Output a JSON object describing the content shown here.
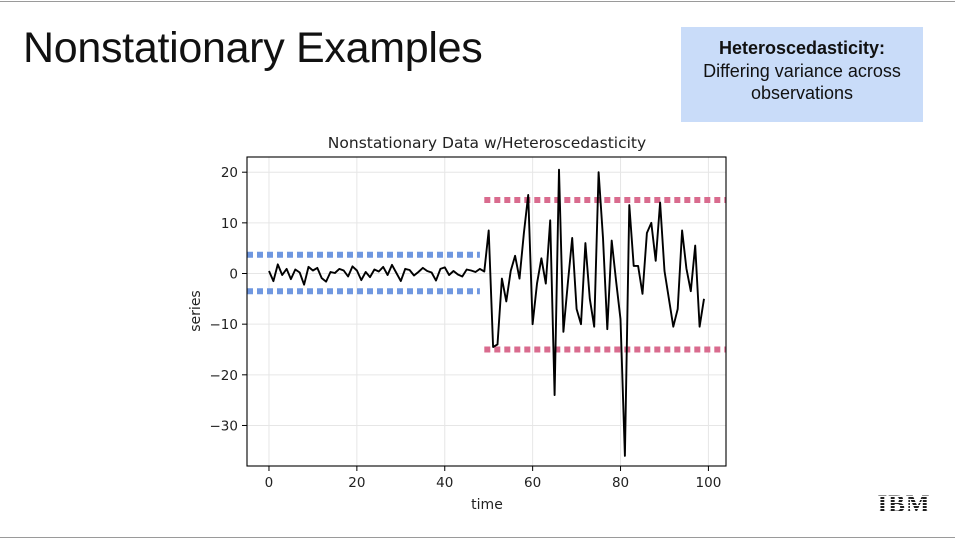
{
  "slide": {
    "title": "Nonstationary Examples"
  },
  "callout": {
    "title": "Heteroscedasticity:",
    "body": "Differing variance across observations"
  },
  "logo": {
    "text": "IBM",
    "color": "#1f1f1f"
  },
  "colors": {
    "series": "#000000",
    "band_low": "#6f97e0",
    "band_high": "#d96b8e",
    "grid": "#e6e6e6",
    "callout_bg": "#c9dcf9"
  },
  "chart_data": {
    "type": "line",
    "title": "Nonstationary Data w/Heteroscedasticity",
    "xlabel": "time",
    "ylabel": "series",
    "xlim": [
      -5,
      104
    ],
    "ylim": [
      -38,
      23
    ],
    "xticks": [
      0,
      20,
      40,
      60,
      80,
      100
    ],
    "yticks": [
      20,
      10,
      0,
      -10,
      -20,
      -30
    ],
    "grid": true,
    "series": [
      {
        "name": "series",
        "x": [
          0,
          1,
          2,
          3,
          4,
          5,
          6,
          7,
          8,
          9,
          10,
          11,
          12,
          13,
          14,
          15,
          16,
          17,
          18,
          19,
          20,
          21,
          22,
          23,
          24,
          25,
          26,
          27,
          28,
          29,
          30,
          31,
          32,
          33,
          34,
          35,
          36,
          37,
          38,
          39,
          40,
          41,
          42,
          43,
          44,
          45,
          46,
          47,
          48,
          49,
          50,
          51,
          52,
          53,
          54,
          55,
          56,
          57,
          58,
          59,
          60,
          61,
          62,
          63,
          64,
          65,
          66,
          67,
          68,
          69,
          70,
          71,
          72,
          73,
          74,
          75,
          76,
          77,
          78,
          79,
          80,
          81,
          82,
          83,
          84,
          85,
          86,
          87,
          88,
          89,
          90,
          91,
          92,
          93,
          94,
          95,
          96,
          97,
          98,
          99
        ],
        "y": [
          0.5,
          -1.5,
          1.8,
          -0.3,
          0.9,
          -1.1,
          0.8,
          0.2,
          -2.2,
          1.3,
          0.6,
          1.1,
          -0.9,
          -1.6,
          0.3,
          0.1,
          0.9,
          0.6,
          -0.6,
          1.4,
          0.6,
          -1.3,
          0.3,
          -0.7,
          0.8,
          0.4,
          1.3,
          -0.3,
          1.7,
          0.1,
          -1.5,
          0.9,
          0.7,
          -0.4,
          0.3,
          1.1,
          0.5,
          0.2,
          -1.4,
          0.9,
          1.2,
          -0.3,
          0.5,
          -0.2,
          -0.6,
          0.8,
          0.6,
          0.3,
          0.9,
          0.4,
          8.5,
          -14.5,
          -14.0,
          -1.0,
          -5.5,
          0.5,
          3.5,
          -1.0,
          8.0,
          15.5,
          -10.0,
          -2.0,
          3.0,
          -2.0,
          10.5,
          -24.0,
          20.5,
          -11.5,
          -2.0,
          7.0,
          -7.0,
          -10.0,
          6.0,
          -5.0,
          -10.5,
          20.0,
          7.0,
          -11.0,
          6.5,
          -1.5,
          -9.0,
          -36.0,
          13.5,
          1.5,
          1.5,
          -4.0,
          8.0,
          10.0,
          2.5,
          14.0,
          0.5,
          -5.0,
          -10.5,
          -7.0,
          8.5,
          1.0,
          -3.5,
          5.5,
          -10.5,
          -5.0
        ]
      }
    ],
    "bands": [
      {
        "name": "low-variance-upper",
        "y": 3.7,
        "x0": -5,
        "x1": 48
      },
      {
        "name": "low-variance-lower",
        "y": -3.5,
        "x0": -5,
        "x1": 48
      },
      {
        "name": "high-variance-upper",
        "y": 14.5,
        "x0": 49,
        "x1": 104
      },
      {
        "name": "high-variance-lower",
        "y": -15.0,
        "x0": 49,
        "x1": 104
      }
    ]
  }
}
